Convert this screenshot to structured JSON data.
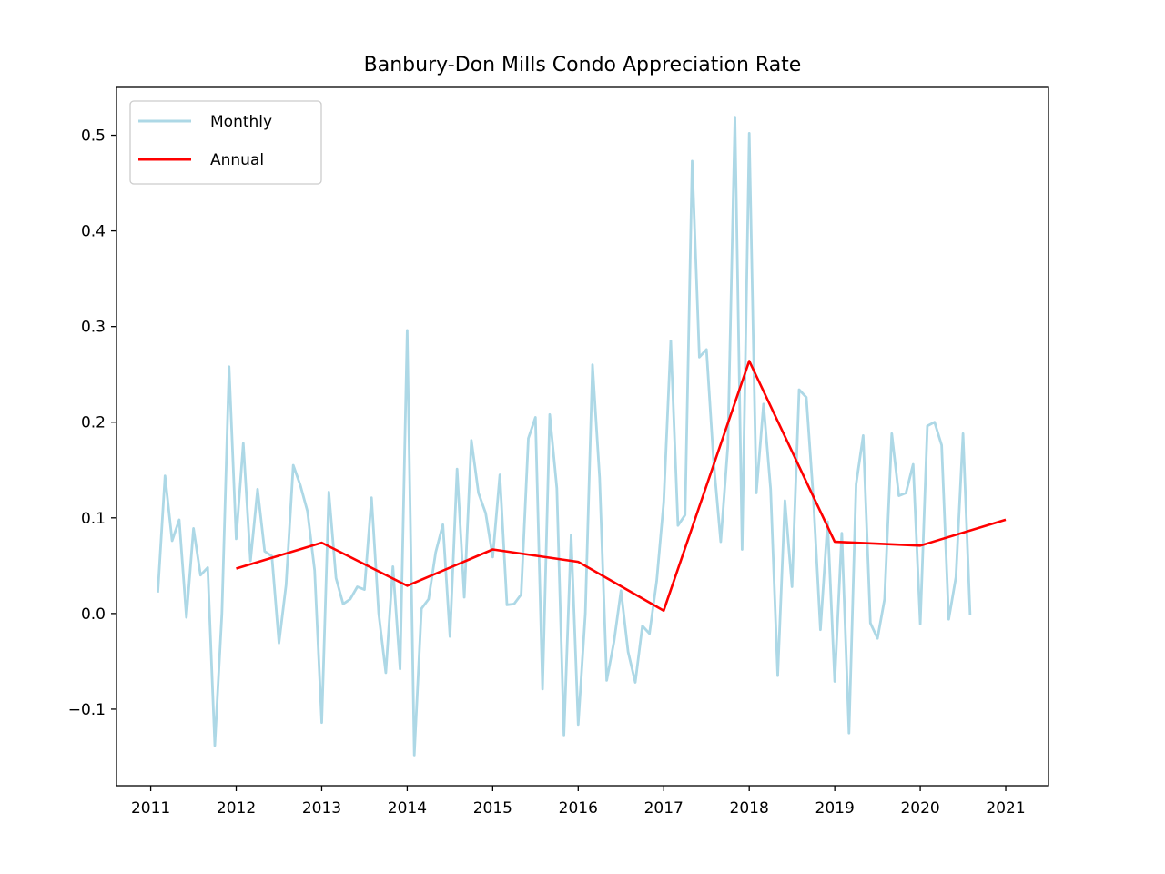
{
  "chart_data": {
    "type": "line",
    "title": "Banbury-Don Mills Condo Appreciation Rate",
    "xlabel": "",
    "ylabel": "",
    "xlim": [
      2010.6,
      2021.5
    ],
    "ylim": [
      -0.18,
      0.55
    ],
    "x_ticks": [
      2011,
      2012,
      2013,
      2014,
      2015,
      2016,
      2017,
      2018,
      2019,
      2020,
      2021
    ],
    "x_tick_labels": [
      "2011",
      "2012",
      "2013",
      "2014",
      "2015",
      "2016",
      "2017",
      "2018",
      "2019",
      "2020",
      "2021"
    ],
    "y_ticks": [
      -0.1,
      0.0,
      0.1,
      0.2,
      0.3,
      0.4,
      0.5
    ],
    "y_tick_labels": [
      "−0.1",
      "0.0",
      "0.1",
      "0.2",
      "0.3",
      "0.4",
      "0.5"
    ],
    "grid": false,
    "legend": "top-left",
    "series": [
      {
        "name": "Monthly",
        "color": "#add8e6",
        "x": [
          2011.083,
          2011.167,
          2011.25,
          2011.333,
          2011.417,
          2011.5,
          2011.583,
          2011.667,
          2011.75,
          2011.833,
          2011.917,
          2012.0,
          2012.083,
          2012.167,
          2012.25,
          2012.333,
          2012.417,
          2012.5,
          2012.583,
          2012.667,
          2012.75,
          2012.833,
          2012.917,
          2013.0,
          2013.083,
          2013.167,
          2013.25,
          2013.333,
          2013.417,
          2013.5,
          2013.583,
          2013.667,
          2013.75,
          2013.833,
          2013.917,
          2014.0,
          2014.083,
          2014.167,
          2014.25,
          2014.333,
          2014.417,
          2014.5,
          2014.583,
          2014.667,
          2014.75,
          2014.833,
          2014.917,
          2015.0,
          2015.083,
          2015.167,
          2015.25,
          2015.333,
          2015.417,
          2015.5,
          2015.583,
          2015.667,
          2015.75,
          2015.833,
          2015.917,
          2016.0,
          2016.083,
          2016.167,
          2016.25,
          2016.333,
          2016.417,
          2016.5,
          2016.583,
          2016.667,
          2016.75,
          2016.833,
          2016.917,
          2017.0,
          2017.083,
          2017.167,
          2017.25,
          2017.333,
          2017.417,
          2017.5,
          2017.583,
          2017.667,
          2017.75,
          2017.833,
          2017.917,
          2018.0,
          2018.083,
          2018.167,
          2018.25,
          2018.333,
          2018.417,
          2018.5,
          2018.583,
          2018.667,
          2018.75,
          2018.833,
          2018.917,
          2019.0,
          2019.083,
          2019.167,
          2019.25,
          2019.333,
          2019.417,
          2019.5,
          2019.583,
          2019.667,
          2019.75,
          2019.833,
          2019.917,
          2020.0,
          2020.083,
          2020.167,
          2020.25,
          2020.333,
          2020.417,
          2020.5,
          2020.583
        ],
        "y": [
          0.022,
          0.144,
          0.076,
          0.098,
          -0.004,
          0.089,
          0.04,
          0.048,
          -0.138,
          0.0,
          0.258,
          0.078,
          0.178,
          0.055,
          0.13,
          0.065,
          0.06,
          -0.031,
          0.03,
          0.155,
          0.134,
          0.107,
          0.045,
          -0.114,
          0.127,
          0.037,
          0.01,
          0.015,
          0.028,
          0.025,
          0.121,
          0.0,
          -0.062,
          0.049,
          -0.058,
          0.296,
          -0.148,
          0.005,
          0.015,
          0.064,
          0.093,
          -0.024,
          0.151,
          0.017,
          0.181,
          0.126,
          0.105,
          0.059,
          0.145,
          0.009,
          0.01,
          0.02,
          0.183,
          0.205,
          -0.079,
          0.208,
          0.131,
          -0.127,
          0.082,
          -0.116,
          0.0,
          0.26,
          0.142,
          -0.07,
          -0.03,
          0.024,
          -0.04,
          -0.072,
          -0.013,
          -0.021,
          0.034,
          0.116,
          0.285,
          0.092,
          0.103,
          0.473,
          0.268,
          0.276,
          0.16,
          0.075,
          0.175,
          0.519,
          0.067,
          0.502,
          0.126,
          0.219,
          0.13,
          -0.065,
          0.118,
          0.028,
          0.234,
          0.226,
          0.12,
          -0.017,
          0.096,
          -0.071,
          0.084,
          -0.125,
          0.135,
          0.186,
          -0.01,
          -0.026,
          0.015,
          0.188,
          0.123,
          0.126,
          0.156,
          -0.011,
          0.196,
          0.2,
          0.176,
          -0.006,
          0.038,
          0.188,
          -0.002
        ]
      },
      {
        "name": "Annual",
        "color": "#ff0000",
        "x": [
          2012,
          2013,
          2014,
          2015,
          2016,
          2017,
          2018,
          2019,
          2020,
          2021
        ],
        "y": [
          0.047,
          0.074,
          0.029,
          0.067,
          0.054,
          0.003,
          0.264,
          0.075,
          0.071,
          0.098
        ]
      }
    ]
  }
}
